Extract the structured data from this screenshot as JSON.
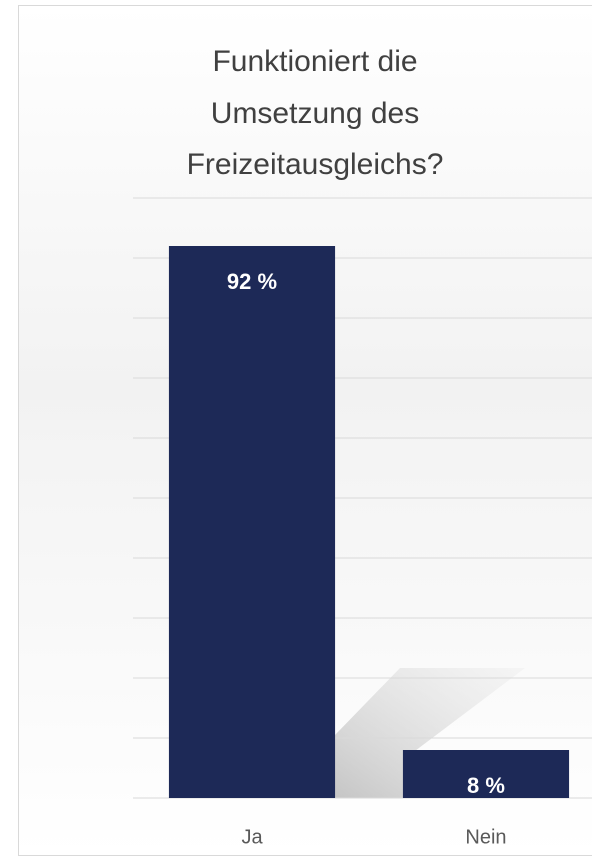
{
  "chart_data": {
    "type": "bar",
    "title": [
      "Funktioniert die",
      "Umsetzung des",
      "Freizeitausgleichs?"
    ],
    "categories": [
      "Ja",
      "Nein"
    ],
    "values": [
      92,
      8
    ],
    "value_labels": [
      "92 %",
      "8 %"
    ],
    "color": "#1d2957",
    "ylim": [
      0,
      100
    ],
    "yticks": [
      0,
      10,
      20,
      30,
      40,
      50,
      60,
      70,
      80,
      90,
      100
    ],
    "grid": true
  }
}
